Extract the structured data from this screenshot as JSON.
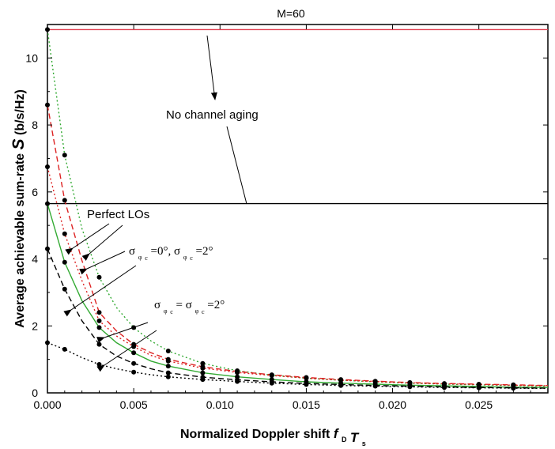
{
  "chart_data": {
    "type": "line",
    "title": "M=60",
    "xlabel": "Normalized Doppler shift",
    "xlabel_symbol": {
      "f": "f",
      "f_sub": "D",
      "T": "T",
      "T_sub": "s"
    },
    "ylabel": "Average achievable sum-rate",
    "ylabel_symbol": "S",
    "ylabel_unit": "(b/s/Hz)",
    "xlim": [
      0,
      0.029
    ],
    "ylim": [
      0,
      11
    ],
    "xticks": [
      "0.000",
      "0.005",
      "0.010",
      "0.015",
      "0.020",
      "0.025"
    ],
    "xtick_values": [
      0,
      0.005,
      0.01,
      0.015,
      0.02,
      0.025
    ],
    "yticks": [
      "0",
      "2",
      "4",
      "6",
      "8",
      "10"
    ],
    "ytick_values": [
      0,
      2,
      4,
      6,
      8,
      10
    ],
    "grid": false,
    "markers_x": [
      0,
      0.001,
      0.003,
      0.005,
      0.007,
      0.009,
      0.011,
      0.013,
      0.015,
      0.017,
      0.019,
      0.021,
      0.023,
      0.025,
      0.027
    ],
    "series": [
      {
        "style": "solid",
        "color": "#e04050",
        "x": [
          0,
          0.029
        ],
        "values": [
          10.85,
          10.85
        ]
      },
      {
        "style": "solid",
        "color": "#000000",
        "x": [
          0,
          0.029
        ],
        "values": [
          5.65,
          5.65
        ]
      },
      {
        "style": "dotted",
        "color": "#33aa33",
        "x": [
          0,
          0.001,
          0.002,
          0.003,
          0.004,
          0.005,
          0.006,
          0.007,
          0.009,
          0.011,
          0.013,
          0.015,
          0.017,
          0.019,
          0.021,
          0.023,
          0.025,
          0.027,
          0.029
        ],
        "values": [
          10.85,
          7.1,
          4.9,
          3.45,
          2.55,
          1.95,
          1.55,
          1.25,
          0.88,
          0.66,
          0.53,
          0.44,
          0.38,
          0.33,
          0.29,
          0.26,
          0.24,
          0.22,
          0.2
        ]
      },
      {
        "style": "dashed",
        "color": "#dd2222",
        "x": [
          0,
          0.001,
          0.002,
          0.003,
          0.004,
          0.005,
          0.006,
          0.007,
          0.009,
          0.011,
          0.013,
          0.015,
          0.017,
          0.019,
          0.021,
          0.023,
          0.025,
          0.027,
          0.029
        ],
        "values": [
          8.6,
          5.75,
          3.95,
          2.4,
          1.85,
          1.45,
          1.2,
          1.0,
          0.78,
          0.64,
          0.54,
          0.46,
          0.4,
          0.35,
          0.31,
          0.28,
          0.26,
          0.24,
          0.22
        ]
      },
      {
        "style": "dotted",
        "color": "#dd2222",
        "x": [
          0,
          0.001,
          0.002,
          0.003,
          0.004,
          0.005,
          0.006,
          0.007,
          0.009,
          0.011,
          0.013,
          0.015,
          0.017,
          0.019,
          0.021,
          0.023,
          0.025,
          0.027,
          0.029
        ],
        "values": [
          6.75,
          4.75,
          3.35,
          2.15,
          1.7,
          1.38,
          1.12,
          0.95,
          0.74,
          0.61,
          0.52,
          0.44,
          0.38,
          0.34,
          0.3,
          0.27,
          0.25,
          0.23,
          0.21
        ]
      },
      {
        "style": "solid",
        "color": "#33aa33",
        "x": [
          0,
          0.001,
          0.002,
          0.003,
          0.004,
          0.005,
          0.006,
          0.007,
          0.009,
          0.011,
          0.013,
          0.015,
          0.017,
          0.019,
          0.021,
          0.023,
          0.025,
          0.027,
          0.029
        ],
        "values": [
          5.65,
          3.9,
          2.75,
          1.95,
          1.5,
          1.2,
          0.95,
          0.8,
          0.6,
          0.48,
          0.4,
          0.33,
          0.29,
          0.26,
          0.23,
          0.21,
          0.19,
          0.17,
          0.16
        ]
      },
      {
        "style": "dashed",
        "color": "#000000",
        "x": [
          0,
          0.001,
          0.002,
          0.003,
          0.004,
          0.005,
          0.006,
          0.007,
          0.009,
          0.011,
          0.013,
          0.015,
          0.017,
          0.019,
          0.021,
          0.023,
          0.025,
          0.027,
          0.029
        ],
        "values": [
          4.3,
          3.1,
          2.15,
          1.45,
          1.1,
          0.88,
          0.72,
          0.6,
          0.47,
          0.39,
          0.33,
          0.28,
          0.25,
          0.22,
          0.2,
          0.18,
          0.16,
          0.15,
          0.14
        ]
      },
      {
        "style": "dotted",
        "color": "#000000",
        "x": [
          0,
          0.001,
          0.002,
          0.003,
          0.004,
          0.005,
          0.006,
          0.007,
          0.009,
          0.011,
          0.013,
          0.015,
          0.017,
          0.019,
          0.021,
          0.023,
          0.025,
          0.027,
          0.029
        ],
        "values": [
          1.5,
          1.3,
          1.05,
          0.85,
          0.72,
          0.62,
          0.54,
          0.48,
          0.4,
          0.34,
          0.29,
          0.25,
          0.22,
          0.2,
          0.18,
          0.16,
          0.15,
          0.14,
          0.13
        ]
      }
    ],
    "annotations": {
      "no_aging": "No channel aging",
      "perfect": "Perfect LOs",
      "sigma1": {
        "s1": "σ",
        "s1_sub": "φ",
        "s1_subsub": "c",
        "v1": "=0°,",
        "s2": "σ",
        "s2_sub": "φ",
        "s2_subsub": "c",
        "v2": "=2°"
      },
      "sigma2": {
        "s1": "σ",
        "s1_sub": "φ",
        "s1_subsub": "c",
        "mid": " = ",
        "s2": "σ",
        "s2_sub": "φ",
        "s2_subsub": "c",
        "v2": "=2°"
      }
    }
  }
}
